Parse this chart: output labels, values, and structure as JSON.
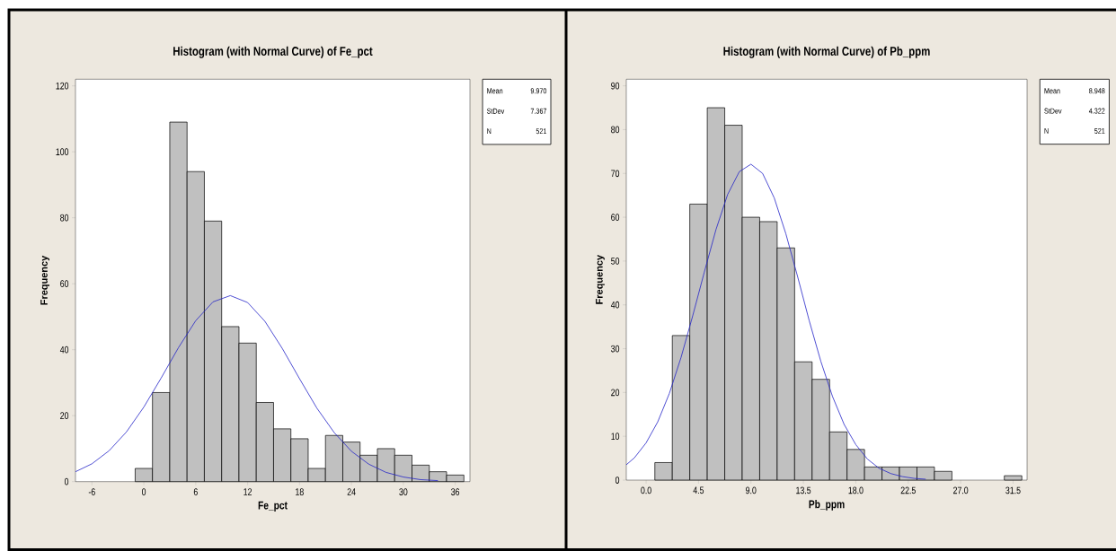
{
  "chart_data": [
    {
      "type": "histogram",
      "title": "Histogram (with Normal Curve) of Fe_pct",
      "xlabel": "Fe_pct",
      "ylabel": "Frequency",
      "xlim": [
        -7.9,
        37.7
      ],
      "ylim": [
        0,
        122
      ],
      "xticks": [
        -6,
        0,
        6,
        12,
        18,
        24,
        30,
        36
      ],
      "yticks": [
        0,
        20,
        40,
        60,
        80,
        100,
        120
      ],
      "series": [
        {
          "type": "histogram",
          "color": "#c0c0c0",
          "bins": [
            -1,
            1,
            3,
            5,
            7,
            9,
            11,
            13,
            15,
            17,
            19,
            21,
            23,
            25,
            27,
            29,
            31,
            33,
            35,
            37
          ],
          "values": [
            4,
            27,
            109,
            94,
            79,
            47,
            42,
            24,
            16,
            13,
            4,
            14,
            12,
            8,
            10,
            8,
            5,
            3,
            2
          ]
        },
        {
          "type": "line",
          "color": "#2424c8",
          "x": [
            -7.9,
            -6,
            -4,
            -2,
            0,
            2,
            4,
            6,
            8,
            10,
            12,
            14,
            16,
            18,
            20,
            22,
            24,
            26,
            28,
            30,
            32,
            34
          ],
          "values": [
            3.0,
            5.4,
            9.4,
            15.1,
            22.6,
            31.4,
            40.6,
            48.8,
            54.5,
            56.4,
            54.3,
            48.6,
            40.4,
            31.2,
            22.3,
            14.9,
            9.2,
            5.3,
            2.8,
            1.4,
            0.6,
            0.3
          ]
        }
      ],
      "annotations": [
        "Mean",
        "9.970",
        "StDev",
        "7.367",
        "N",
        "521"
      ]
    },
    {
      "type": "histogram",
      "title": "Histogram (with Normal Curve) of Pb_ppm",
      "xlabel": "Pb_ppm",
      "ylabel": "Frequency",
      "xlim": [
        -1.7,
        32.7
      ],
      "ylim": [
        0,
        91.5
      ],
      "xticks": [
        {
          "value": 0,
          "label": "0.0"
        },
        4.5,
        {
          "value": 9,
          "label": "9.0"
        },
        13.5,
        {
          "value": 18,
          "label": "18.0"
        },
        22.5,
        {
          "value": 27,
          "label": "27.0"
        },
        31.5
      ],
      "yticks": [
        0,
        10,
        20,
        30,
        40,
        50,
        60,
        70,
        80,
        90
      ],
      "series": [
        {
          "type": "histogram",
          "color": "#c0c0c0",
          "bins": [
            0.75,
            2.25,
            3.75,
            5.25,
            6.75,
            8.25,
            9.75,
            11.25,
            12.75,
            14.25,
            15.75,
            17.25,
            18.75,
            20.25,
            21.75,
            23.25,
            24.75,
            26.25,
            27.75,
            29.25,
            30.75,
            32.25
          ],
          "values": [
            4,
            33,
            63,
            85,
            81,
            60,
            59,
            53,
            27,
            23,
            11,
            7,
            3,
            3,
            3,
            3,
            2,
            0,
            0,
            0,
            1
          ]
        },
        {
          "type": "line",
          "color": "#2424c8",
          "x": [
            -1.7,
            -1,
            0,
            1,
            2,
            3,
            4,
            5,
            6,
            7,
            8,
            9,
            10,
            11,
            12,
            13,
            14,
            15,
            16,
            17,
            18,
            19,
            20,
            21,
            22,
            23,
            24
          ],
          "values": [
            3.5,
            5.1,
            8.5,
            13.3,
            19.8,
            28.0,
            37.5,
            47.5,
            57.2,
            65.2,
            70.4,
            72.1,
            70.0,
            64.4,
            56.2,
            46.5,
            36.4,
            27.1,
            19.1,
            12.7,
            8.1,
            4.8,
            2.7,
            1.5,
            0.8,
            0.4,
            0.2
          ]
        }
      ],
      "annotations": [
        "Mean",
        "8.948",
        "StDev",
        "4.322",
        "N",
        "521"
      ]
    }
  ]
}
